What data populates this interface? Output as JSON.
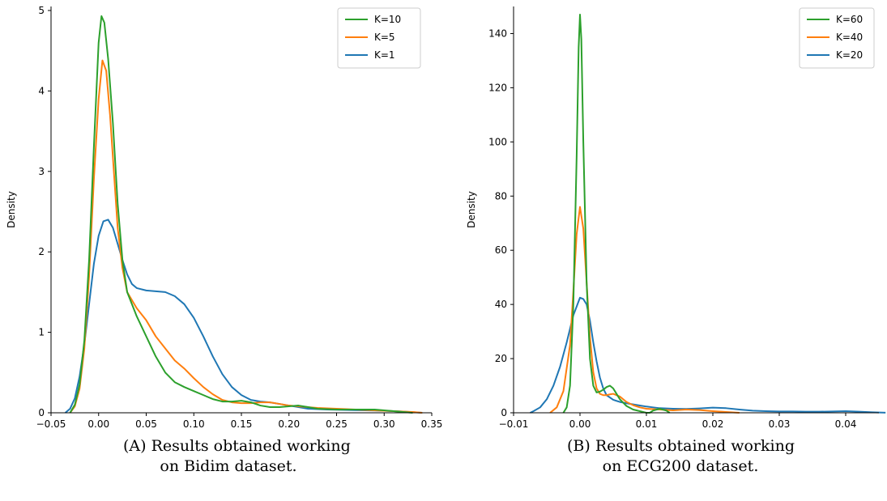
{
  "chart_data": [
    {
      "type": "line",
      "title": "",
      "xlabel": "",
      "ylabel": "Density",
      "xlim": [
        -0.05,
        0.35
      ],
      "ylim": [
        0,
        5.05
      ],
      "x_ticks": [
        -0.05,
        0.0,
        0.05,
        0.1,
        0.15,
        0.2,
        0.25,
        0.3,
        0.35
      ],
      "x_tick_labels": [
        "−0.05",
        "0.00",
        "0.05",
        "0.10",
        "0.15",
        "0.20",
        "0.25",
        "0.30",
        "0.35"
      ],
      "y_ticks": [
        0,
        1,
        2,
        3,
        4,
        5
      ],
      "y_tick_labels": [
        "0",
        "1",
        "2",
        "3",
        "4",
        "5"
      ],
      "legend_position": "top-right",
      "grid": false,
      "series": [
        {
          "name": "K=10",
          "color": "#2ca02c",
          "points": [
            [
              -0.03,
              0.0
            ],
            [
              -0.025,
              0.1
            ],
            [
              -0.02,
              0.35
            ],
            [
              -0.015,
              0.9
            ],
            [
              -0.01,
              1.9
            ],
            [
              -0.005,
              3.3
            ],
            [
              0.0,
              4.6
            ],
            [
              0.003,
              4.93
            ],
            [
              0.006,
              4.85
            ],
            [
              0.01,
              4.4
            ],
            [
              0.015,
              3.6
            ],
            [
              0.02,
              2.6
            ],
            [
              0.025,
              1.9
            ],
            [
              0.03,
              1.5
            ],
            [
              0.04,
              1.2
            ],
            [
              0.05,
              0.95
            ],
            [
              0.06,
              0.7
            ],
            [
              0.07,
              0.5
            ],
            [
              0.08,
              0.38
            ],
            [
              0.09,
              0.32
            ],
            [
              0.1,
              0.27
            ],
            [
              0.11,
              0.22
            ],
            [
              0.12,
              0.17
            ],
            [
              0.13,
              0.14
            ],
            [
              0.14,
              0.14
            ],
            [
              0.15,
              0.15
            ],
            [
              0.16,
              0.13
            ],
            [
              0.17,
              0.09
            ],
            [
              0.18,
              0.07
            ],
            [
              0.19,
              0.07
            ],
            [
              0.2,
              0.08
            ],
            [
              0.21,
              0.09
            ],
            [
              0.22,
              0.07
            ],
            [
              0.23,
              0.05
            ],
            [
              0.25,
              0.04
            ],
            [
              0.27,
              0.04
            ],
            [
              0.29,
              0.04
            ],
            [
              0.3,
              0.03
            ],
            [
              0.31,
              0.02
            ],
            [
              0.32,
              0.01
            ],
            [
              0.33,
              0.0
            ]
          ]
        },
        {
          "name": "K=5",
          "color": "#ff7f0e",
          "points": [
            [
              -0.03,
              0.0
            ],
            [
              -0.025,
              0.08
            ],
            [
              -0.02,
              0.3
            ],
            [
              -0.015,
              0.8
            ],
            [
              -0.01,
              1.7
            ],
            [
              -0.005,
              2.9
            ],
            [
              0.0,
              3.9
            ],
            [
              0.004,
              4.38
            ],
            [
              0.008,
              4.25
            ],
            [
              0.012,
              3.7
            ],
            [
              0.016,
              3.0
            ],
            [
              0.02,
              2.3
            ],
            [
              0.025,
              1.8
            ],
            [
              0.03,
              1.5
            ],
            [
              0.04,
              1.3
            ],
            [
              0.05,
              1.15
            ],
            [
              0.06,
              0.95
            ],
            [
              0.07,
              0.8
            ],
            [
              0.08,
              0.65
            ],
            [
              0.09,
              0.55
            ],
            [
              0.1,
              0.43
            ],
            [
              0.11,
              0.32
            ],
            [
              0.12,
              0.23
            ],
            [
              0.13,
              0.16
            ],
            [
              0.14,
              0.13
            ],
            [
              0.15,
              0.12
            ],
            [
              0.16,
              0.12
            ],
            [
              0.17,
              0.13
            ],
            [
              0.18,
              0.13
            ],
            [
              0.19,
              0.11
            ],
            [
              0.2,
              0.09
            ],
            [
              0.21,
              0.08
            ],
            [
              0.22,
              0.07
            ],
            [
              0.23,
              0.06
            ],
            [
              0.25,
              0.05
            ],
            [
              0.27,
              0.04
            ],
            [
              0.29,
              0.03
            ],
            [
              0.31,
              0.02
            ],
            [
              0.33,
              0.01
            ],
            [
              0.34,
              0.0
            ]
          ]
        },
        {
          "name": "K=1",
          "color": "#1f77b4",
          "points": [
            [
              -0.035,
              0.0
            ],
            [
              -0.03,
              0.05
            ],
            [
              -0.025,
              0.18
            ],
            [
              -0.02,
              0.45
            ],
            [
              -0.015,
              0.85
            ],
            [
              -0.01,
              1.35
            ],
            [
              -0.005,
              1.85
            ],
            [
              0.0,
              2.2
            ],
            [
              0.005,
              2.38
            ],
            [
              0.01,
              2.4
            ],
            [
              0.015,
              2.3
            ],
            [
              0.02,
              2.1
            ],
            [
              0.025,
              1.9
            ],
            [
              0.03,
              1.72
            ],
            [
              0.035,
              1.6
            ],
            [
              0.04,
              1.55
            ],
            [
              0.05,
              1.52
            ],
            [
              0.06,
              1.51
            ],
            [
              0.07,
              1.5
            ],
            [
              0.08,
              1.45
            ],
            [
              0.09,
              1.35
            ],
            [
              0.1,
              1.18
            ],
            [
              0.11,
              0.95
            ],
            [
              0.12,
              0.7
            ],
            [
              0.13,
              0.48
            ],
            [
              0.14,
              0.32
            ],
            [
              0.15,
              0.22
            ],
            [
              0.16,
              0.16
            ],
            [
              0.17,
              0.14
            ],
            [
              0.18,
              0.13
            ],
            [
              0.19,
              0.11
            ],
            [
              0.2,
              0.09
            ],
            [
              0.21,
              0.07
            ],
            [
              0.22,
              0.05
            ],
            [
              0.24,
              0.04
            ],
            [
              0.26,
              0.035
            ],
            [
              0.28,
              0.03
            ],
            [
              0.3,
              0.025
            ],
            [
              0.32,
              0.015
            ],
            [
              0.34,
              0.0
            ]
          ]
        }
      ]
    },
    {
      "type": "line",
      "title": "",
      "xlabel": "",
      "ylabel": "Density",
      "xlim": [
        -0.01,
        0.045
      ],
      "ylim": [
        0,
        150
      ],
      "x_ticks": [
        -0.01,
        0.0,
        0.01,
        0.02,
        0.03,
        0.04
      ],
      "x_tick_labels": [
        "−0.01",
        "0.00",
        "0.01",
        "0.02",
        "0.03",
        "0.04"
      ],
      "y_ticks": [
        0,
        20,
        40,
        60,
        80,
        100,
        120,
        140
      ],
      "y_tick_labels": [
        "0",
        "20",
        "40",
        "60",
        "80",
        "100",
        "120",
        "140"
      ],
      "legend_position": "top-right",
      "grid": false,
      "series": [
        {
          "name": "K=60",
          "color": "#2ca02c",
          "points": [
            [
              -0.0025,
              0.0
            ],
            [
              -0.002,
              2
            ],
            [
              -0.0015,
              10
            ],
            [
              -0.001,
              40
            ],
            [
              -0.0005,
              95
            ],
            [
              -0.0002,
              135
            ],
            [
              0.0,
              147
            ],
            [
              0.0002,
              138
            ],
            [
              0.0005,
              100
            ],
            [
              0.001,
              48
            ],
            [
              0.0015,
              20
            ],
            [
              0.002,
              10
            ],
            [
              0.0025,
              7.5
            ],
            [
              0.003,
              7.8
            ],
            [
              0.0035,
              8.5
            ],
            [
              0.004,
              9.5
            ],
            [
              0.0045,
              10
            ],
            [
              0.005,
              9
            ],
            [
              0.0055,
              7
            ],
            [
              0.006,
              5
            ],
            [
              0.007,
              2.5
            ],
            [
              0.008,
              1.2
            ],
            [
              0.009,
              0.6
            ],
            [
              0.01,
              0.0
            ],
            [
              0.0105,
              0.0
            ],
            [
              0.011,
              0.8
            ],
            [
              0.012,
              1.5
            ],
            [
              0.013,
              0.8
            ],
            [
              0.0135,
              0.0
            ]
          ]
        },
        {
          "name": "K=40",
          "color": "#ff7f0e",
          "points": [
            [
              -0.0045,
              0.0
            ],
            [
              -0.0035,
              2
            ],
            [
              -0.0025,
              8
            ],
            [
              -0.0015,
              25
            ],
            [
              -0.001,
              45
            ],
            [
              -0.0005,
              66
            ],
            [
              0.0,
              76
            ],
            [
              0.0005,
              68
            ],
            [
              0.001,
              48
            ],
            [
              0.0015,
              28
            ],
            [
              0.002,
              15
            ],
            [
              0.0025,
              9
            ],
            [
              0.003,
              7
            ],
            [
              0.0035,
              6.5
            ],
            [
              0.004,
              6.5
            ],
            [
              0.0045,
              6.8
            ],
            [
              0.005,
              7
            ],
            [
              0.006,
              6
            ],
            [
              0.007,
              4
            ],
            [
              0.008,
              2.8
            ],
            [
              0.009,
              2
            ],
            [
              0.01,
              1.5
            ],
            [
              0.012,
              1.2
            ],
            [
              0.014,
              0.9
            ],
            [
              0.016,
              1.2
            ],
            [
              0.018,
              1.0
            ],
            [
              0.02,
              0.6
            ],
            [
              0.022,
              0.3
            ],
            [
              0.024,
              0.0
            ]
          ]
        },
        {
          "name": "K=20",
          "color": "#1f77b4",
          "points": [
            [
              -0.0075,
              0.0
            ],
            [
              -0.007,
              0.6
            ],
            [
              -0.006,
              2
            ],
            [
              -0.005,
              5
            ],
            [
              -0.004,
              10
            ],
            [
              -0.003,
              17
            ],
            [
              -0.002,
              26
            ],
            [
              -0.001,
              36
            ],
            [
              0.0,
              42.5
            ],
            [
              0.0005,
              42
            ],
            [
              0.001,
              40
            ],
            [
              0.0015,
              34
            ],
            [
              0.002,
              26
            ],
            [
              0.0025,
              19
            ],
            [
              0.003,
              13
            ],
            [
              0.0035,
              9
            ],
            [
              0.004,
              6.5
            ],
            [
              0.005,
              4.8
            ],
            [
              0.006,
              4
            ],
            [
              0.007,
              3.5
            ],
            [
              0.008,
              3.1
            ],
            [
              0.009,
              2.7
            ],
            [
              0.01,
              2.3
            ],
            [
              0.011,
              2.0
            ],
            [
              0.012,
              1.7
            ],
            [
              0.014,
              1.5
            ],
            [
              0.016,
              1.4
            ],
            [
              0.018,
              1.6
            ],
            [
              0.02,
              1.9
            ],
            [
              0.022,
              1.7
            ],
            [
              0.024,
              1.2
            ],
            [
              0.026,
              0.8
            ],
            [
              0.028,
              0.6
            ],
            [
              0.03,
              0.5
            ],
            [
              0.032,
              0.5
            ],
            [
              0.034,
              0.4
            ],
            [
              0.036,
              0.4
            ],
            [
              0.038,
              0.5
            ],
            [
              0.04,
              0.6
            ],
            [
              0.042,
              0.4
            ],
            [
              0.044,
              0.2
            ],
            [
              0.046,
              0.05
            ]
          ]
        }
      ]
    }
  ],
  "captions": [
    {
      "tag": "(A)",
      "line1": "Results obtained working",
      "line2": "on Bidim dataset."
    },
    {
      "tag": "(B)",
      "line1": "Results obtained working",
      "line2": "on ECG200 dataset."
    }
  ]
}
